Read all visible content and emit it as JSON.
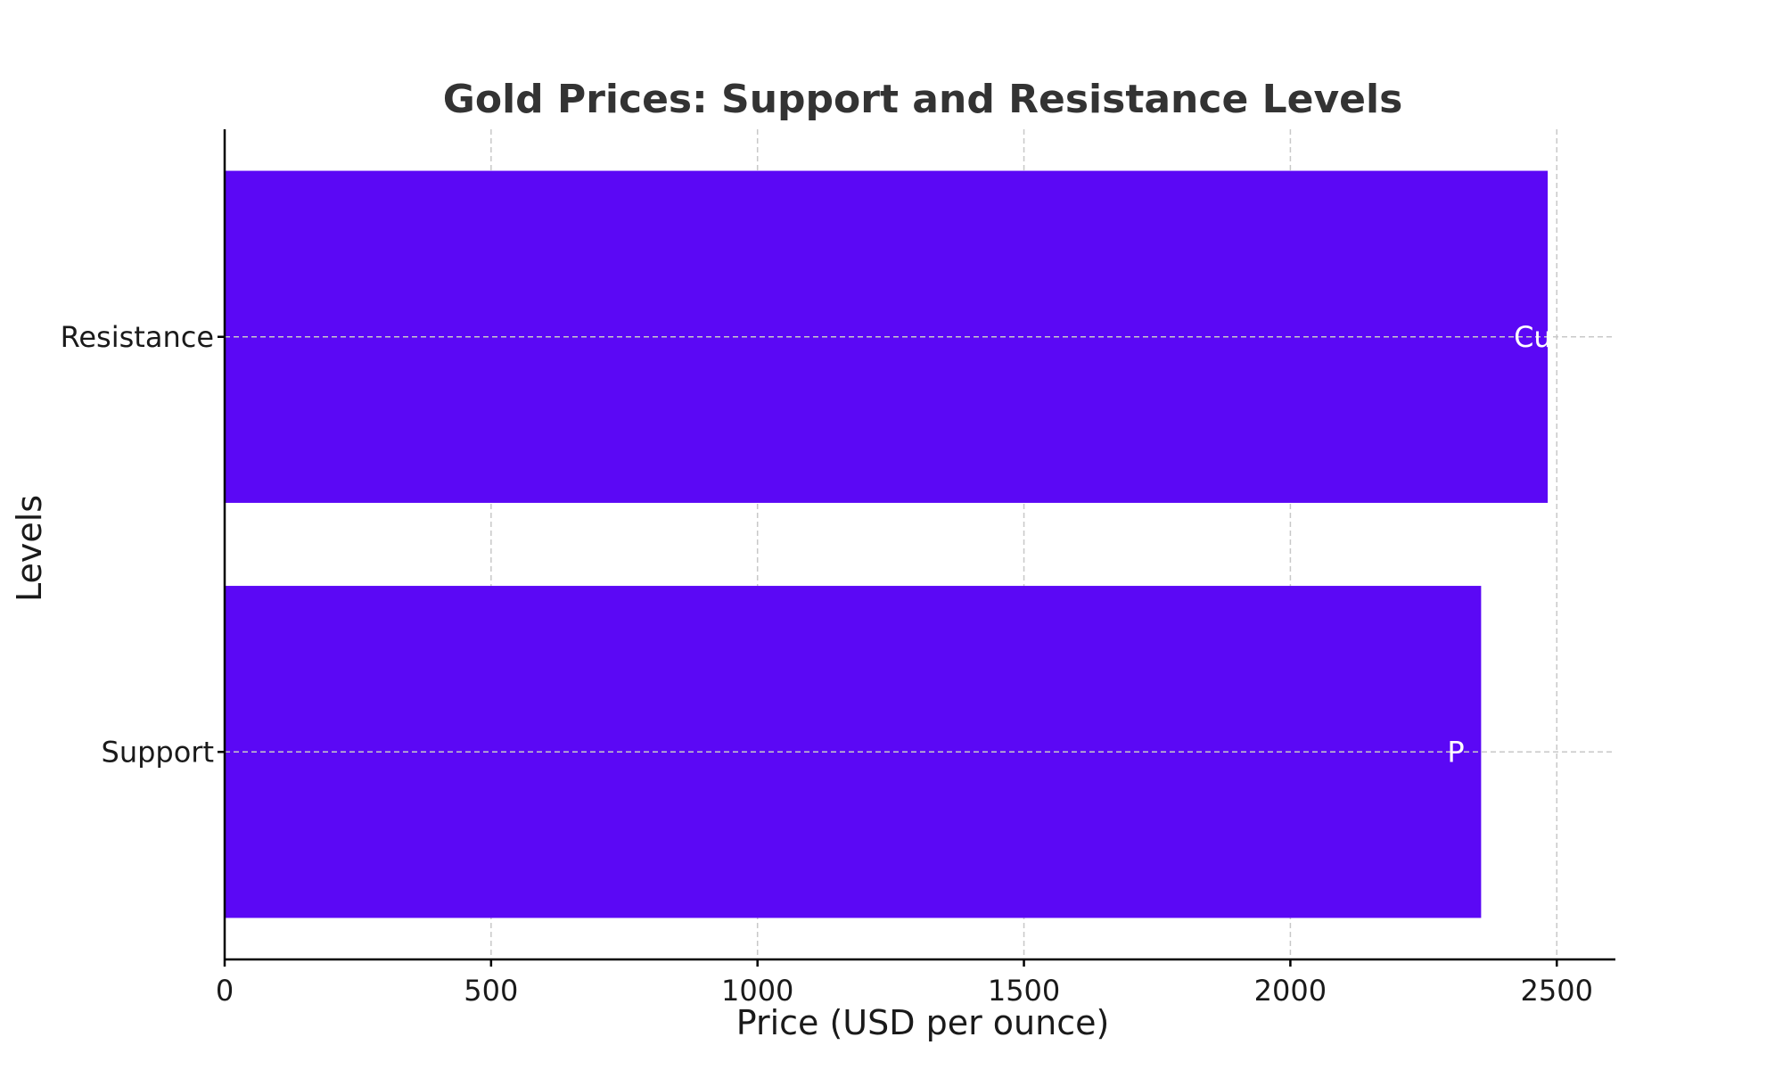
{
  "chart_data": {
    "type": "bar",
    "orientation": "horizontal",
    "title": "Gold Prices: Support and Resistance Levels",
    "xlabel": "Price (USD per ounce)",
    "ylabel": "Levels",
    "categories": [
      "Support",
      "Resistance"
    ],
    "values": [
      2358,
      2483
    ],
    "bar_labels": [
      "P",
      "Cu"
    ],
    "xlim": [
      0,
      2610
    ],
    "xticks": [
      0,
      500,
      1000,
      1500,
      2000,
      2500
    ],
    "grid": true,
    "bar_color": "#5b08f5",
    "text_color": "#1a1a1a",
    "title_color": "#333333"
  }
}
